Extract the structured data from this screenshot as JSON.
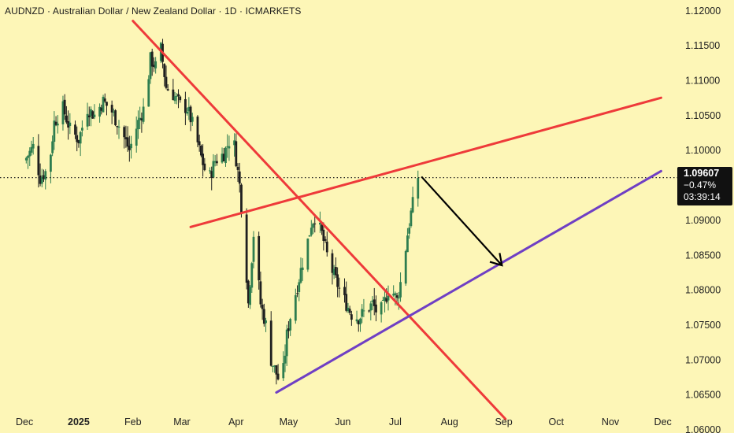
{
  "header": {
    "title": "AUDNZD · Australian Dollar / New Zealand Dollar · 1D · ICMARKETS"
  },
  "price_tag": {
    "price": "1.09607",
    "change": "−0.47%",
    "countdown": "03:39:14"
  },
  "colors": {
    "background": "#fdf6b7",
    "up_candle": "#2e7d4f",
    "down_candle": "#1f1f1f",
    "red_trendline": "#ee3a3a",
    "purple_trendline": "#6f3fc4",
    "arrow": "#000000",
    "last_price_line": "#222222"
  },
  "chart_data": {
    "type": "candlestick",
    "symbol": "AUDNZD",
    "timeframe": "1D",
    "x_axis": {
      "tick_labels": [
        "Dec",
        "2025",
        "Feb",
        "Mar",
        "Apr",
        "May",
        "Jun",
        "Jul",
        "Aug",
        "Sep",
        "Oct",
        "Nov",
        "Dec"
      ],
      "tick_dates": [
        "2024-12-01",
        "2025-01-01",
        "2025-02-01",
        "2025-03-01",
        "2025-04-01",
        "2025-05-01",
        "2025-06-01",
        "2025-07-01",
        "2025-08-01",
        "2025-09-01",
        "2025-10-01",
        "2025-11-01",
        "2025-12-01"
      ],
      "bold_labels": [
        "2025"
      ],
      "range": [
        "2024-12-01",
        "2025-12-01"
      ]
    },
    "y_axis": {
      "position": "right",
      "tick_labels": [
        "1.12000",
        "1.11500",
        "1.11000",
        "1.10500",
        "1.10000",
        "1.09500",
        "1.09000",
        "1.08500",
        "1.08000",
        "1.07500",
        "1.07000",
        "1.06500",
        "1.06000"
      ],
      "tick_values": [
        1.12,
        1.115,
        1.11,
        1.105,
        1.1,
        1.095,
        1.09,
        1.085,
        1.08,
        1.075,
        1.07,
        1.065,
        1.06
      ],
      "range": [
        1.0595,
        1.1215
      ]
    },
    "grid": false,
    "last_price": 1.09607,
    "candle_path": [
      [
        "2024-12-01",
        1.0985
      ],
      [
        "2024-12-06",
        1.1005
      ],
      [
        "2024-12-10",
        1.096
      ],
      [
        "2024-12-15",
        1.0975
      ],
      [
        "2024-12-18",
        1.104
      ],
      [
        "2024-12-23",
        1.106
      ],
      [
        "2024-12-27",
        1.103
      ],
      [
        "2025-01-01",
        1.1015
      ],
      [
        "2025-01-06",
        1.106
      ],
      [
        "2025-01-10",
        1.105
      ],
      [
        "2025-01-15",
        1.107
      ],
      [
        "2025-01-20",
        1.1055
      ],
      [
        "2025-01-25",
        1.103
      ],
      [
        "2025-01-30",
        1.1
      ],
      [
        "2025-02-04",
        1.104
      ],
      [
        "2025-02-08",
        1.1065
      ],
      [
        "2025-02-11",
        1.113
      ],
      [
        "2025-02-14",
        1.112
      ],
      [
        "2025-02-17",
        1.1145
      ],
      [
        "2025-02-20",
        1.109
      ],
      [
        "2025-02-24",
        1.108
      ],
      [
        "2025-02-28",
        1.1065
      ],
      [
        "2025-03-04",
        1.106
      ],
      [
        "2025-03-08",
        1.103
      ],
      [
        "2025-03-12",
        1.099
      ],
      [
        "2025-03-16",
        1.0955
      ],
      [
        "2025-03-20",
        1.0985
      ],
      [
        "2025-03-25",
        1.0995
      ],
      [
        "2025-03-30",
        1.1025
      ],
      [
        "2025-04-03",
        1.095
      ],
      [
        "2025-04-06",
        1.086
      ],
      [
        "2025-04-08",
        1.078
      ],
      [
        "2025-04-11",
        1.088
      ],
      [
        "2025-04-15",
        1.078
      ],
      [
        "2025-04-18",
        1.075
      ],
      [
        "2025-04-21",
        1.07
      ],
      [
        "2025-04-24",
        1.068
      ],
      [
        "2025-04-27",
        1.066
      ],
      [
        "2025-04-30",
        1.0735
      ],
      [
        "2025-05-03",
        1.0775
      ],
      [
        "2025-05-06",
        1.0805
      ],
      [
        "2025-05-09",
        1.084
      ],
      [
        "2025-05-12",
        1.087
      ],
      [
        "2025-05-14",
        1.0895
      ],
      [
        "2025-05-16",
        1.0905
      ],
      [
        "2025-05-20",
        1.088
      ],
      [
        "2025-05-24",
        1.084
      ],
      [
        "2025-05-27",
        1.082
      ],
      [
        "2025-05-31",
        1.0795
      ],
      [
        "2025-06-03",
        1.078
      ],
      [
        "2025-06-06",
        1.0765
      ],
      [
        "2025-06-10",
        1.076
      ],
      [
        "2025-06-14",
        1.077
      ],
      [
        "2025-06-18",
        1.078
      ],
      [
        "2025-06-21",
        1.0765
      ],
      [
        "2025-06-24",
        1.0775
      ],
      [
        "2025-06-27",
        1.08
      ],
      [
        "2025-06-30",
        1.0795
      ],
      [
        "2025-07-02",
        1.0785
      ],
      [
        "2025-07-04",
        1.081
      ],
      [
        "2025-07-06",
        1.084
      ],
      [
        "2025-07-08",
        1.088
      ],
      [
        "2025-07-10",
        1.091
      ],
      [
        "2025-07-12",
        1.0935
      ],
      [
        "2025-07-14",
        1.0962
      ]
    ],
    "annotations": [
      {
        "type": "trendline",
        "color": "red",
        "from": [
          "2025-02-01",
          1.1185
        ],
        "to": [
          "2025-09-02",
          1.0615
        ]
      },
      {
        "type": "trendline",
        "color": "red",
        "from": [
          "2025-03-06",
          1.089
        ],
        "to": [
          "2025-11-30",
          1.1075
        ]
      },
      {
        "type": "trendline",
        "color": "purple",
        "from": [
          "2025-04-24",
          1.0653
        ],
        "to": [
          "2025-11-30",
          1.097
        ]
      },
      {
        "type": "arrow",
        "color": "black",
        "from": [
          "2025-07-16",
          1.0962
        ],
        "to": [
          "2025-08-31",
          1.0835
        ]
      }
    ]
  }
}
